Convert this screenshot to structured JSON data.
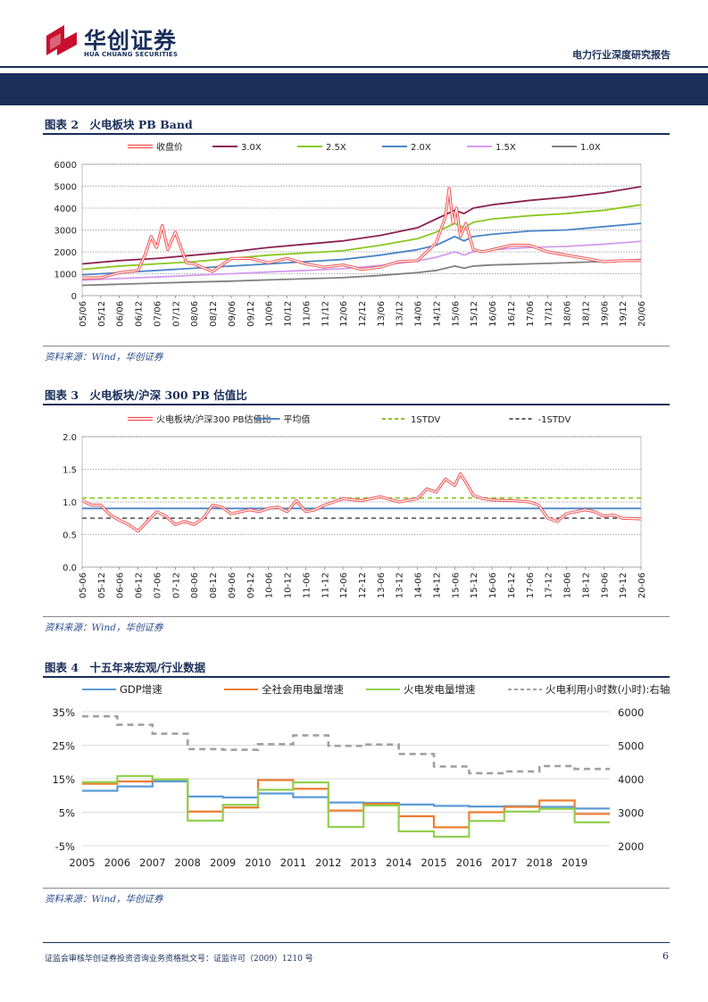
{
  "header": {
    "company_cn": "华创证券",
    "company_en": "HUA CHUANG SECURITIES",
    "report_type": "电力行业深度研究报告"
  },
  "figures": [
    {
      "title": "图表 2　火电板块 PB Band",
      "source": "资料来源：Wind，华创证券"
    },
    {
      "title": "图表 3　火电板块/沪深 300 PB 估值比",
      "source": "资料来源：Wind，华创证券"
    },
    {
      "title": "图表 4　十五年来宏观/行业数据",
      "source": "资料来源：Wind，华创证券"
    }
  ],
  "footer": {
    "disclaimer": "证监会审核华创证券投资咨询业务资格批文号：证监许可（2009）1210 号",
    "page_number": "6"
  },
  "chart_data": [
    {
      "type": "line",
      "x_ticks": [
        "05/06",
        "05/12",
        "06/06",
        "06/12",
        "07/06",
        "07/12",
        "08/06",
        "08/12",
        "09/06",
        "09/12",
        "10/06",
        "10/12",
        "11/06",
        "11/12",
        "12/06",
        "12/12",
        "13/06",
        "13/12",
        "14/06",
        "14/12",
        "15/06",
        "15/12",
        "16/06",
        "16/12",
        "17/06",
        "17/12",
        "18/06",
        "18/12",
        "19/06",
        "19/12",
        "20/06"
      ],
      "ylim": [
        0,
        6000
      ],
      "y_ticks": [
        0,
        1000,
        2000,
        3000,
        4000,
        5000,
        6000
      ],
      "grid": "horizontal-dashed",
      "legend": "top",
      "series": [
        {
          "name": "收盘价",
          "color": "#f05050",
          "style": "double",
          "x": [
            0,
            1,
            2,
            3,
            3.4,
            3.7,
            4,
            4.3,
            4.6,
            5,
            5.3,
            5.6,
            6,
            7,
            8,
            9,
            10,
            11,
            12,
            13,
            14,
            15,
            16,
            17,
            18,
            19,
            19.5,
            19.7,
            19.9,
            20.1,
            20.3,
            20.6,
            21,
            21.5,
            22,
            23,
            24,
            25,
            26,
            27,
            28,
            29,
            30
          ],
          "values": [
            800,
            820,
            1050,
            1150,
            1900,
            2700,
            2200,
            3200,
            2100,
            2900,
            2200,
            1500,
            1450,
            1100,
            1700,
            1700,
            1500,
            1700,
            1450,
            1300,
            1400,
            1200,
            1300,
            1550,
            1600,
            2400,
            3600,
            4900,
            3300,
            4000,
            2700,
            3300,
            2100,
            2000,
            2100,
            2300,
            2300,
            2000,
            1850,
            1700,
            1550,
            1600,
            1600
          ]
        },
        {
          "name": "3.0X",
          "color": "#8b2252",
          "x": [
            0,
            2,
            4,
            6,
            8,
            10,
            12,
            14,
            16,
            18,
            19,
            20,
            20.5,
            21,
            22,
            24,
            26,
            28,
            30
          ],
          "values": [
            1450,
            1600,
            1700,
            1850,
            2000,
            2200,
            2350,
            2500,
            2750,
            3100,
            3500,
            3900,
            3750,
            4000,
            4150,
            4350,
            4500,
            4700,
            4980
          ]
        },
        {
          "name": "2.5X",
          "color": "#88c820",
          "x": [
            0,
            2,
            4,
            6,
            8,
            10,
            12,
            14,
            16,
            18,
            19,
            20,
            20.5,
            21,
            22,
            24,
            26,
            28,
            30
          ],
          "values": [
            1200,
            1350,
            1450,
            1550,
            1700,
            1850,
            1950,
            2050,
            2300,
            2600,
            2900,
            3300,
            3100,
            3350,
            3500,
            3650,
            3750,
            3900,
            4150
          ]
        },
        {
          "name": "2.0X",
          "color": "#4a86c8",
          "x": [
            0,
            2,
            4,
            6,
            8,
            10,
            12,
            14,
            16,
            18,
            19,
            20,
            20.5,
            21,
            22,
            24,
            26,
            28,
            30
          ],
          "values": [
            950,
            1050,
            1150,
            1250,
            1350,
            1450,
            1550,
            1650,
            1850,
            2100,
            2300,
            2700,
            2500,
            2700,
            2800,
            2950,
            3000,
            3150,
            3300
          ]
        },
        {
          "name": "1.5X",
          "color": "#d49cf0",
          "x": [
            0,
            2,
            4,
            6,
            8,
            10,
            12,
            14,
            16,
            18,
            19,
            20,
            20.5,
            21,
            22,
            24,
            26,
            28,
            30
          ],
          "values": [
            700,
            780,
            850,
            930,
            1000,
            1080,
            1150,
            1230,
            1380,
            1580,
            1750,
            2000,
            1850,
            2000,
            2100,
            2200,
            2250,
            2350,
            2480
          ]
        },
        {
          "name": "1.0X",
          "color": "#808080",
          "x": [
            0,
            2,
            4,
            6,
            8,
            10,
            12,
            14,
            16,
            18,
            19,
            20,
            20.5,
            21,
            22,
            24,
            26,
            28,
            30
          ],
          "values": [
            470,
            520,
            570,
            620,
            660,
            720,
            770,
            820,
            920,
            1050,
            1150,
            1350,
            1250,
            1350,
            1400,
            1450,
            1500,
            1560,
            1650
          ]
        }
      ]
    },
    {
      "type": "line",
      "x_ticks": [
        "05-06",
        "05-12",
        "06-06",
        "06-12",
        "07-06",
        "07-12",
        "08-06",
        "08-12",
        "09-06",
        "09-12",
        "10-06",
        "10-12",
        "11-06",
        "11-12",
        "12-06",
        "12-12",
        "13-06",
        "13-12",
        "14-06",
        "14-12",
        "15-06",
        "15-12",
        "16-06",
        "16-12",
        "17-06",
        "17-12",
        "18-06",
        "18-12",
        "19-06",
        "19-12",
        "20-06"
      ],
      "ylim": [
        0,
        2.0
      ],
      "y_ticks": [
        "0.0",
        "0.5",
        "1.0",
        "1.5",
        "2.0"
      ],
      "grid": "horizontal-dashed",
      "legend": "top",
      "series": [
        {
          "name": "火电板块/沪深300 PB估值比",
          "color": "#f05050",
          "style": "double",
          "x": [
            0,
            0.5,
            1,
            1.5,
            2,
            2.5,
            3,
            3.5,
            4,
            4.5,
            5,
            5.5,
            6,
            6.5,
            7,
            7.5,
            8,
            8.5,
            9,
            9.5,
            10,
            10.5,
            11,
            11.5,
            12,
            12.5,
            13,
            14,
            15,
            16,
            17,
            18,
            18.5,
            19,
            19.5,
            20,
            20.3,
            20.6,
            21,
            21.5,
            22,
            23,
            24,
            24.5,
            25,
            25.5,
            26,
            27,
            27.5,
            28,
            28.5,
            29,
            30
          ],
          "values": [
            1.02,
            0.95,
            0.95,
            0.8,
            0.72,
            0.65,
            0.55,
            0.7,
            0.85,
            0.78,
            0.65,
            0.7,
            0.65,
            0.75,
            0.95,
            0.92,
            0.82,
            0.85,
            0.88,
            0.85,
            0.9,
            0.92,
            0.85,
            1.02,
            0.85,
            0.88,
            0.95,
            1.05,
            1.02,
            1.08,
            1.0,
            1.05,
            1.2,
            1.15,
            1.35,
            1.25,
            1.43,
            1.3,
            1.1,
            1.05,
            1.03,
            1.02,
            1.0,
            0.95,
            0.75,
            0.7,
            0.82,
            0.88,
            0.85,
            0.78,
            0.8,
            0.75,
            0.74
          ]
        },
        {
          "name": "平均值",
          "color": "#4a86c8",
          "x": [
            0,
            30
          ],
          "values": [
            0.9,
            0.9
          ]
        },
        {
          "name": "1STDV",
          "color": "#88c820",
          "dash": true,
          "x": [
            0,
            30
          ],
          "values": [
            1.06,
            1.06
          ]
        },
        {
          "name": "-1STDV",
          "color": "#606060",
          "dash": true,
          "x": [
            0,
            30
          ],
          "values": [
            0.75,
            0.75
          ]
        }
      ]
    },
    {
      "type": "line",
      "categories": [
        "2005",
        "2006",
        "2007",
        "2008",
        "2009",
        "2010",
        "2011",
        "2012",
        "2013",
        "2014",
        "2015",
        "2016",
        "2017",
        "2018",
        "2019"
      ],
      "ylim": [
        -5,
        35
      ],
      "y_ticks": [
        "-5%",
        "5%",
        "15%",
        "25%",
        "35%"
      ],
      "y2lim": [
        2000,
        6000
      ],
      "y2_ticks": [
        "2000",
        "3000",
        "4000",
        "5000",
        "6000"
      ],
      "grid": "horizontal-solid",
      "legend": "top",
      "series": [
        {
          "name": "GDP增速",
          "color": "#5b9bd5",
          "axis": "left",
          "step": true,
          "values": [
            11.4,
            12.7,
            14.2,
            9.7,
            9.4,
            10.6,
            9.5,
            7.9,
            7.8,
            7.3,
            6.9,
            6.7,
            6.8,
            6.6,
            6.1
          ]
        },
        {
          "name": "全社会用电量增速",
          "color": "#ed7d31",
          "axis": "left",
          "step": true,
          "values": [
            13.5,
            14.2,
            14.8,
            5.2,
            6.4,
            14.6,
            12.0,
            5.5,
            7.5,
            3.8,
            0.5,
            5.0,
            6.6,
            8.5,
            4.5
          ]
        },
        {
          "name": "火电发电量增速",
          "color": "#92d050",
          "axis": "left",
          "step": true,
          "values": [
            14.0,
            15.8,
            14.8,
            2.5,
            7.2,
            11.7,
            13.9,
            0.6,
            7.0,
            -0.7,
            -2.3,
            2.4,
            5.2,
            6.0,
            2.0
          ]
        },
        {
          "name": "火电利用小时数(小时):右轴",
          "color": "#a0a0a0",
          "axis": "right",
          "step": true,
          "dash": true,
          "values": [
            5865,
            5612,
            5344,
            4885,
            4865,
            5031,
            5294,
            4982,
            5021,
            4739,
            4364,
            4165,
            4219,
            4378,
            4293
          ]
        }
      ]
    }
  ]
}
